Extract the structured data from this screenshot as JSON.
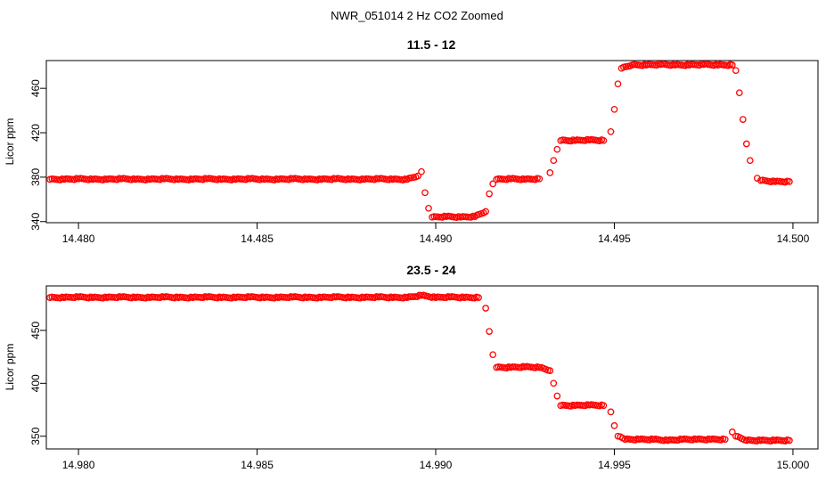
{
  "figure": {
    "title": "NWR_051014  2 Hz CO2 Zoomed"
  },
  "chart_data": [
    {
      "type": "scatter",
      "title": "11.5 - 12",
      "xlabel": "",
      "ylabel": "Licor ppm",
      "xlim": [
        14.4791,
        14.5007
      ],
      "ylim": [
        339,
        485
      ],
      "xticks": [
        14.48,
        14.485,
        14.49,
        14.495,
        14.5
      ],
      "xtick_labels": [
        "14.480",
        "14.485",
        "14.490",
        "14.495",
        "14.500"
      ],
      "yticks": [
        340,
        380,
        420,
        460
      ],
      "ytick_labels": [
        "340",
        "380",
        "420",
        "460"
      ],
      "grid": false,
      "marker": "open-circle",
      "color": "#ff0000",
      "points": [
        [
          14.4792,
          378
        ],
        [
          14.4796,
          378
        ],
        [
          14.48,
          378.5
        ],
        [
          14.4804,
          378
        ],
        [
          14.4808,
          378
        ],
        [
          14.4812,
          378.5
        ],
        [
          14.4816,
          378
        ],
        [
          14.482,
          378
        ],
        [
          14.4824,
          378.5
        ],
        [
          14.4828,
          378
        ],
        [
          14.4832,
          378
        ],
        [
          14.4836,
          378.5
        ],
        [
          14.484,
          378
        ],
        [
          14.4844,
          378
        ],
        [
          14.4848,
          378.5
        ],
        [
          14.4852,
          378
        ],
        [
          14.4856,
          378
        ],
        [
          14.486,
          378.5
        ],
        [
          14.4864,
          378
        ],
        [
          14.4868,
          378
        ],
        [
          14.4872,
          378.5
        ],
        [
          14.4876,
          378
        ],
        [
          14.488,
          378
        ],
        [
          14.4884,
          378.5
        ],
        [
          14.4888,
          378
        ],
        [
          14.4892,
          378
        ],
        [
          14.4895,
          381
        ],
        [
          14.4896,
          385
        ],
        [
          14.4897,
          366
        ],
        [
          14.4898,
          352
        ],
        [
          14.4899,
          344
        ],
        [
          14.4903,
          344.5
        ],
        [
          14.4907,
          344
        ],
        [
          14.4911,
          344.5
        ],
        [
          14.4914,
          349
        ],
        [
          14.4915,
          365
        ],
        [
          14.4916,
          374
        ],
        [
          14.4917,
          378
        ],
        [
          14.4921,
          378.5
        ],
        [
          14.4925,
          378
        ],
        [
          14.4929,
          378.5
        ],
        [
          14.4932,
          384
        ],
        [
          14.4933,
          395
        ],
        [
          14.4934,
          405
        ],
        [
          14.4935,
          413
        ],
        [
          14.4939,
          413
        ],
        [
          14.4943,
          413.5
        ],
        [
          14.4947,
          413
        ],
        [
          14.4949,
          421
        ],
        [
          14.495,
          441
        ],
        [
          14.4951,
          464
        ],
        [
          14.4952,
          478
        ],
        [
          14.4955,
          481
        ],
        [
          14.4959,
          481
        ],
        [
          14.4963,
          481.5
        ],
        [
          14.4967,
          481
        ],
        [
          14.4971,
          481
        ],
        [
          14.4975,
          481.5
        ],
        [
          14.4979,
          481
        ],
        [
          14.4983,
          481
        ],
        [
          14.4984,
          476
        ],
        [
          14.4985,
          456
        ],
        [
          14.4986,
          432
        ],
        [
          14.4987,
          410
        ],
        [
          14.4988,
          395
        ],
        [
          14.499,
          379
        ],
        [
          14.4991,
          377
        ],
        [
          14.4995,
          376
        ],
        [
          14.4999,
          376
        ]
      ]
    },
    {
      "type": "scatter",
      "title": "23.5 - 24",
      "xlabel": "",
      "ylabel": "Licor ppm",
      "xlim": [
        14.9791,
        15.0007
      ],
      "ylim": [
        338,
        492
      ],
      "xticks": [
        14.98,
        14.985,
        14.99,
        14.995,
        15.0
      ],
      "xtick_labels": [
        "14.980",
        "14.985",
        "14.990",
        "14.995",
        "15.000"
      ],
      "yticks": [
        350,
        400,
        450
      ],
      "ytick_labels": [
        "350",
        "400",
        "450"
      ],
      "grid": false,
      "marker": "open-circle",
      "color": "#ff0000",
      "points": [
        [
          14.9792,
          481
        ],
        [
          14.9796,
          481
        ],
        [
          14.98,
          481.5
        ],
        [
          14.9804,
          481
        ],
        [
          14.9808,
          481
        ],
        [
          14.9812,
          481.5
        ],
        [
          14.9816,
          481
        ],
        [
          14.982,
          481
        ],
        [
          14.9824,
          481.5
        ],
        [
          14.9828,
          481
        ],
        [
          14.9832,
          481
        ],
        [
          14.9836,
          481.5
        ],
        [
          14.984,
          481
        ],
        [
          14.9844,
          481
        ],
        [
          14.9848,
          481.5
        ],
        [
          14.9852,
          481
        ],
        [
          14.9856,
          481
        ],
        [
          14.986,
          481.5
        ],
        [
          14.9864,
          481
        ],
        [
          14.9868,
          481
        ],
        [
          14.9872,
          481.5
        ],
        [
          14.9876,
          481
        ],
        [
          14.988,
          481
        ],
        [
          14.9884,
          481.5
        ],
        [
          14.9888,
          481
        ],
        [
          14.9892,
          481
        ],
        [
          14.9896,
          483
        ],
        [
          14.99,
          481
        ],
        [
          14.9904,
          481.5
        ],
        [
          14.9908,
          481
        ],
        [
          14.9912,
          481
        ],
        [
          14.9914,
          471
        ],
        [
          14.9915,
          449
        ],
        [
          14.9916,
          427
        ],
        [
          14.9917,
          415
        ],
        [
          14.9921,
          415
        ],
        [
          14.9925,
          415.5
        ],
        [
          14.9929,
          415
        ],
        [
          14.9932,
          412
        ],
        [
          14.9933,
          400
        ],
        [
          14.9934,
          388
        ],
        [
          14.9935,
          379
        ],
        [
          14.9939,
          379
        ],
        [
          14.9943,
          379.5
        ],
        [
          14.9947,
          379
        ],
        [
          14.9949,
          373
        ],
        [
          14.995,
          360
        ],
        [
          14.9951,
          350
        ],
        [
          14.9953,
          347
        ],
        [
          14.9957,
          347
        ],
        [
          14.9961,
          347
        ],
        [
          14.9965,
          346
        ],
        [
          14.9969,
          347
        ],
        [
          14.9973,
          347
        ],
        [
          14.9977,
          347
        ],
        [
          14.9981,
          347
        ],
        [
          14.9983,
          354
        ],
        [
          14.9984,
          350
        ],
        [
          14.9987,
          346
        ],
        [
          14.9991,
          346
        ],
        [
          14.9995,
          346
        ],
        [
          14.9999,
          346
        ]
      ]
    }
  ]
}
